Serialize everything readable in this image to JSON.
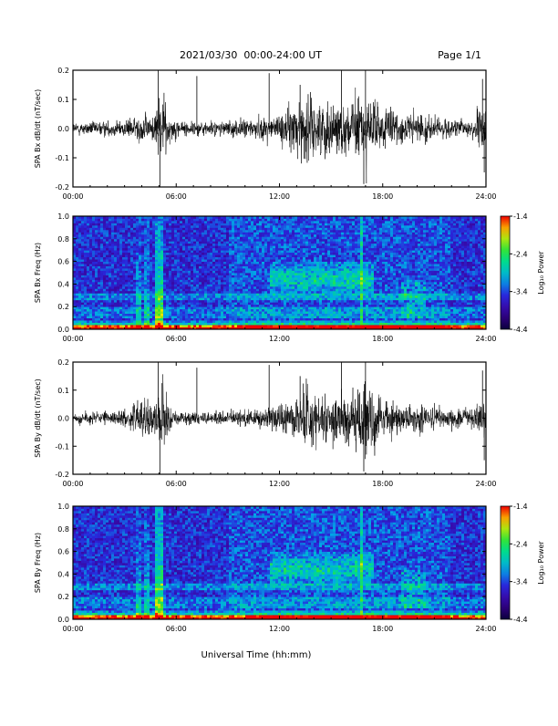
{
  "header": {
    "title": "2021/03/30  00:00-24:00 UT",
    "page": "Page 1/1"
  },
  "x_axis": {
    "label": "Universal Time (hh:mm)",
    "range_hours": [
      0,
      24
    ],
    "tick_labels": [
      "00:00",
      "06:00",
      "12:00",
      "18:00",
      "24:00"
    ]
  },
  "chart_data": [
    {
      "type": "line",
      "ylabel": "SPA Bx dB/dt (nT/sec)",
      "ylim": [
        -0.2,
        0.2
      ],
      "y_tick_labels": [
        "-0.2",
        "-0.1",
        "0.0",
        "0.1",
        "0.2"
      ],
      "envelope": {
        "hours": [
          0,
          1,
          2,
          3,
          3.8,
          4.2,
          4.7,
          5.0,
          5.3,
          5.6,
          6,
          7,
          8,
          9,
          10,
          11,
          12,
          13,
          13.5,
          14,
          15,
          16,
          16.8,
          17.2,
          18,
          19,
          20,
          21,
          22,
          23,
          23.7,
          24
        ],
        "amplitude": [
          0.035,
          0.035,
          0.04,
          0.045,
          0.07,
          0.08,
          0.06,
          0.2,
          0.2,
          0.07,
          0.05,
          0.04,
          0.04,
          0.045,
          0.05,
          0.06,
          0.08,
          0.14,
          0.2,
          0.15,
          0.15,
          0.14,
          0.2,
          0.18,
          0.12,
          0.1,
          0.08,
          0.06,
          0.05,
          0.06,
          0.1,
          0.14
        ]
      }
    },
    {
      "type": "heatmap",
      "ylabel": "SPA Bx Freq (Hz)",
      "ylim": [
        0.0,
        1.0
      ],
      "y_tick_labels": [
        "0.0",
        "0.2",
        "0.4",
        "0.6",
        "0.8",
        "1.0"
      ],
      "colorbar_label": "Log₁₀ Power",
      "colorbar_ticks": [
        "-1.4",
        "-2.4",
        "-3.4",
        "-4.4"
      ],
      "power_range": [
        -4.4,
        -1.4
      ]
    },
    {
      "type": "line",
      "ylabel": "SPA By dB/dt (nT/sec)",
      "ylim": [
        -0.2,
        0.2
      ],
      "y_tick_labels": [
        "-0.2",
        "-0.1",
        "0.0",
        "0.1",
        "0.2"
      ],
      "envelope": {
        "hours": [
          0,
          1,
          2,
          3,
          3.8,
          4.2,
          4.7,
          5.0,
          5.3,
          5.6,
          6,
          7,
          8,
          9,
          10,
          11,
          12,
          13,
          13.5,
          14,
          15,
          16,
          16.8,
          17.2,
          18,
          19,
          20,
          21,
          22,
          23,
          23.7,
          24
        ],
        "amplitude": [
          0.035,
          0.035,
          0.035,
          0.045,
          0.1,
          0.12,
          0.07,
          0.2,
          0.2,
          0.07,
          0.04,
          0.035,
          0.035,
          0.04,
          0.045,
          0.05,
          0.08,
          0.12,
          0.2,
          0.14,
          0.14,
          0.16,
          0.2,
          0.2,
          0.12,
          0.1,
          0.08,
          0.06,
          0.05,
          0.06,
          0.1,
          0.12
        ]
      }
    },
    {
      "type": "heatmap",
      "ylabel": "SPA By Freq (Hz)",
      "ylim": [
        0.0,
        1.0
      ],
      "y_tick_labels": [
        "0.0",
        "0.2",
        "0.4",
        "0.6",
        "0.8",
        "1.0"
      ],
      "colorbar_label": "Log₁₀ Power",
      "colorbar_ticks": [
        "-1.4",
        "-2.4",
        "-3.4",
        "-4.4"
      ],
      "power_range": [
        -4.4,
        -1.4
      ]
    }
  ]
}
